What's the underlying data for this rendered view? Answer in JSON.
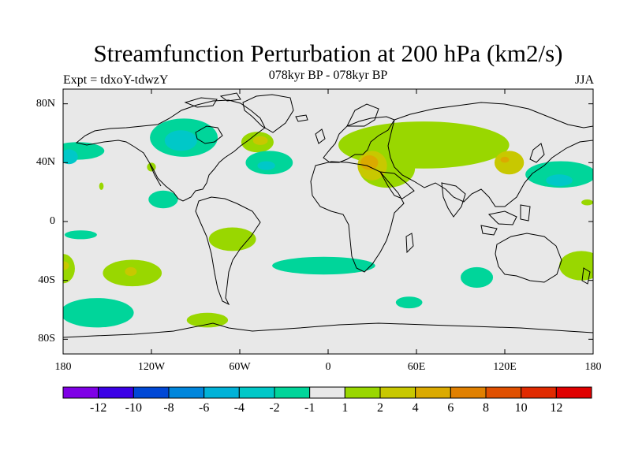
{
  "header": {
    "title": "Streamfunction Perturbation at 200 hPa (km2/s)",
    "subtitle": "078kyr BP - 078kyr BP",
    "experiment": "Expt = tdxoY-tdwzY",
    "season": "JJA"
  },
  "map": {
    "projection": "cylindrical-equidistant",
    "lon_range": [
      -180,
      180
    ],
    "lat_range": [
      -90,
      90
    ],
    "lat_ticks": [
      {
        "value": 80,
        "label": "80N"
      },
      {
        "value": 40,
        "label": "40N"
      },
      {
        "value": 0,
        "label": "0"
      },
      {
        "value": -40,
        "label": "40S"
      },
      {
        "value": -80,
        "label": "80S"
      }
    ],
    "lon_ticks": [
      {
        "value": -180,
        "label": "180"
      },
      {
        "value": -120,
        "label": "120W"
      },
      {
        "value": -60,
        "label": "60W"
      },
      {
        "value": 0,
        "label": "0"
      },
      {
        "value": 60,
        "label": "60E"
      },
      {
        "value": 120,
        "label": "120E"
      },
      {
        "value": 180,
        "label": "180"
      }
    ],
    "background_color": "#e8e8e8",
    "regions": [
      {
        "name": "N Pacific west",
        "lon": -170,
        "lat": 48,
        "rx": 18,
        "ry": 6,
        "color": "#00d59a"
      },
      {
        "name": "N Pacific west core",
        "lon": -176,
        "lat": 44,
        "rx": 6,
        "ry": 5,
        "color": "#00c8c8"
      },
      {
        "name": "N America north",
        "lon": -98,
        "lat": 57,
        "rx": 23,
        "ry": 13,
        "color": "#00d59a"
      },
      {
        "name": "N America core",
        "lon": -100,
        "lat": 55,
        "rx": 11,
        "ry": 7,
        "color": "#00c8c8"
      },
      {
        "name": "NE Pacific small",
        "lon": -120,
        "lat": 37,
        "rx": 3,
        "ry": 3,
        "color": "#99d700"
      },
      {
        "name": "Pacific dot",
        "lon": -154,
        "lat": 24,
        "rx": 1.5,
        "ry": 2.5,
        "color": "#99d700"
      },
      {
        "name": "Central America",
        "lon": -112,
        "lat": 15,
        "rx": 10,
        "ry": 6,
        "color": "#00d59a"
      },
      {
        "name": "Greenland",
        "lon": -48,
        "lat": 54,
        "rx": 11,
        "ry": 7,
        "color": "#99d700"
      },
      {
        "name": "Greenland core",
        "lon": -46,
        "lat": 55,
        "rx": 5,
        "ry": 3,
        "color": "#c8c800"
      },
      {
        "name": "N Atlantic",
        "lon": -40,
        "lat": 40,
        "rx": 16,
        "ry": 8,
        "color": "#00d59a"
      },
      {
        "name": "N Atlantic core",
        "lon": -42,
        "lat": 38,
        "rx": 6,
        "ry": 3,
        "color": "#00c8c8"
      },
      {
        "name": "Eurasia band",
        "lon": 65,
        "lat": 52,
        "rx": 58,
        "ry": 16,
        "color": "#99d700"
      },
      {
        "name": "Middle East",
        "lon": 40,
        "lat": 36,
        "rx": 19,
        "ry": 13,
        "color": "#99d700"
      },
      {
        "name": "Mediterranean",
        "lon": 30,
        "lat": 38,
        "rx": 10,
        "ry": 10,
        "color": "#c8c800"
      },
      {
        "name": "Mediterranean core",
        "lon": 28,
        "lat": 40,
        "rx": 6,
        "ry": 5,
        "color": "#dbaa00"
      },
      {
        "name": "Eurasia east",
        "lon": 103,
        "lat": 48,
        "rx": 10,
        "ry": 7,
        "color": "#99d700"
      },
      {
        "name": "East Asia",
        "lon": 123,
        "lat": 40,
        "rx": 10,
        "ry": 8,
        "color": "#c8c800"
      },
      {
        "name": "East Asia core",
        "lon": 120,
        "lat": 42,
        "rx": 3,
        "ry": 2,
        "color": "#dbaa00"
      },
      {
        "name": "NW Pacific",
        "lon": 158,
        "lat": 32,
        "rx": 24,
        "ry": 9,
        "color": "#00d59a"
      },
      {
        "name": "NW Pacific core",
        "lon": 157,
        "lat": 28,
        "rx": 9,
        "ry": 4,
        "color": "#00c8c8"
      },
      {
        "name": "W Pacific dot",
        "lon": 176,
        "lat": 13,
        "rx": 4,
        "ry": 2,
        "color": "#99d700"
      },
      {
        "name": "Galapagos small",
        "lon": -168,
        "lat": -9,
        "rx": 11,
        "ry": 3,
        "color": "#00d59a"
      },
      {
        "name": "S America",
        "lon": -65,
        "lat": -12,
        "rx": 16,
        "ry": 8,
        "color": "#99d700"
      },
      {
        "name": "S Atlantic band",
        "lon": -3,
        "lat": -30,
        "rx": 35,
        "ry": 6,
        "color": "#00d59a"
      },
      {
        "name": "S Pacific west",
        "lon": -180,
        "lat": -32,
        "rx": 8,
        "ry": 10,
        "color": "#99d700"
      },
      {
        "name": "S Pacific west core",
        "lon": -180,
        "lat": -30,
        "rx": 4,
        "ry": 3,
        "color": "#c8c800"
      },
      {
        "name": "S Pacific central",
        "lon": -133,
        "lat": -35,
        "rx": 20,
        "ry": 9,
        "color": "#99d700"
      },
      {
        "name": "S Pacific central core",
        "lon": -134,
        "lat": -34,
        "rx": 4,
        "ry": 3,
        "color": "#c8c800"
      },
      {
        "name": "Indian Ocean",
        "lon": 101,
        "lat": -38,
        "rx": 11,
        "ry": 7,
        "color": "#00d59a"
      },
      {
        "name": "S Indian",
        "lon": 55,
        "lat": -55,
        "rx": 9,
        "ry": 4,
        "color": "#00d59a"
      },
      {
        "name": "Australia east",
        "lon": 172,
        "lat": -30,
        "rx": 15,
        "ry": 10,
        "color": "#99d700"
      },
      {
        "name": "Southern Pacific",
        "lon": -157,
        "lat": -62,
        "rx": 25,
        "ry": 10,
        "color": "#00d59a"
      },
      {
        "name": "Drake Passage",
        "lon": -82,
        "lat": -67,
        "rx": 14,
        "ry": 5,
        "color": "#99d700"
      }
    ]
  },
  "colorbar": {
    "colors": [
      "#7f00e6",
      "#3b00e6",
      "#0048d6",
      "#0086dc",
      "#00b2d8",
      "#00c8c8",
      "#00d59a",
      "#e8e8e8",
      "#99d700",
      "#c8c800",
      "#dbaa00",
      "#e08000",
      "#e05000",
      "#e02a00",
      "#e00000"
    ],
    "labels": [
      "-12",
      "-10",
      "-8",
      "-6",
      "-4",
      "-2",
      "-1",
      "1",
      "2",
      "4",
      "6",
      "8",
      "10",
      "12"
    ]
  }
}
